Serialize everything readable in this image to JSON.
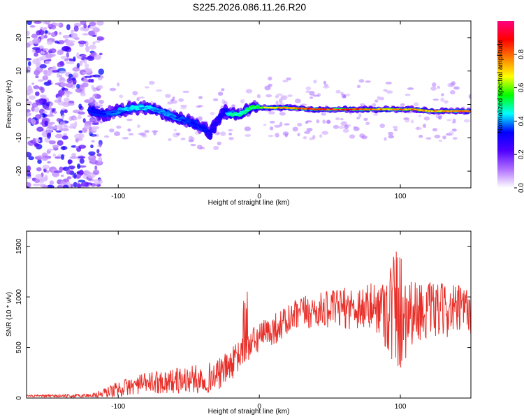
{
  "chart_data": [
    {
      "type": "heatmap",
      "title": "S225.2026.086.11.26.R20",
      "xlabel": "Height of straight line (km)",
      "ylabel": "Frequency (Hz)",
      "xlim": [
        -165,
        150
      ],
      "ylim": [
        -25,
        25
      ],
      "xticks": [
        -100,
        0,
        100
      ],
      "yticks": [
        -20,
        -10,
        0,
        10,
        20
      ],
      "colorbar": {
        "label": "Normalized spectral amplitude",
        "range": [
          0,
          1
        ],
        "ticks": [
          "0.0",
          "0.2",
          "0.4",
          "0.6",
          "0.8"
        ],
        "colors": [
          "#ffffff",
          "#b070ff",
          "#5000ff",
          "#0000ff",
          "#00ffff",
          "#00ff00",
          "#ffff00",
          "#ff8000",
          "#ff0000",
          "#ff0080"
        ]
      },
      "ridge": {
        "x": [
          -120,
          -110,
          -100,
          -90,
          -80,
          -70,
          -60,
          -50,
          -40,
          -35,
          -30,
          -25,
          -20,
          -15,
          -10,
          -5,
          0,
          10,
          20,
          40,
          60,
          80,
          90,
          100,
          110,
          120,
          130,
          140,
          150
        ],
        "frequency": [
          -2,
          -3,
          -2,
          -1,
          -1,
          -2,
          -4,
          -5,
          -7,
          -9,
          -5,
          -2,
          -3,
          -3,
          -2,
          -1,
          -1,
          -1,
          -1,
          -1.5,
          -1.5,
          -1.5,
          -1.5,
          -1.5,
          -1.5,
          -2,
          -2,
          -2,
          -2
        ],
        "amplitude": [
          0.35,
          0.35,
          0.4,
          0.45,
          0.45,
          0.4,
          0.4,
          0.35,
          0.35,
          0.3,
          0.3,
          0.3,
          0.5,
          0.5,
          0.5,
          0.55,
          0.6,
          0.75,
          0.8,
          0.9,
          0.9,
          0.85,
          0.8,
          0.8,
          0.8,
          0.75,
          0.8,
          0.8,
          0.8
        ]
      },
      "noise_region_x": [
        -165,
        -112
      ]
    },
    {
      "type": "line",
      "xlabel": "Height of straight line (km)",
      "ylabel": "SNR (10 * v/v)",
      "xlim": [
        -165,
        150
      ],
      "ylim": [
        0,
        1650
      ],
      "xticks": [
        -100,
        0,
        100
      ],
      "yticks": [
        0,
        500,
        1000,
        1500
      ],
      "series": [
        {
          "name": "SNR",
          "color": "#e8302a",
          "trend_x": [
            -165,
            -130,
            -115,
            -100,
            -80,
            -60,
            -40,
            -30,
            -20,
            -10,
            0,
            10,
            20,
            30,
            50,
            70,
            90,
            100,
            120,
            150
          ],
          "trend_y": [
            20,
            20,
            30,
            90,
            150,
            170,
            190,
            220,
            330,
            480,
            600,
            680,
            760,
            840,
            880,
            900,
            890,
            870,
            860,
            870
          ],
          "amplitude_x": [
            -165,
            -120,
            -100,
            -50,
            -20,
            0,
            50,
            85,
            97,
            110,
            150
          ],
          "amplitude_y": [
            10,
            20,
            80,
            140,
            160,
            150,
            180,
            260,
            700,
            300,
            240
          ]
        }
      ]
    }
  ]
}
